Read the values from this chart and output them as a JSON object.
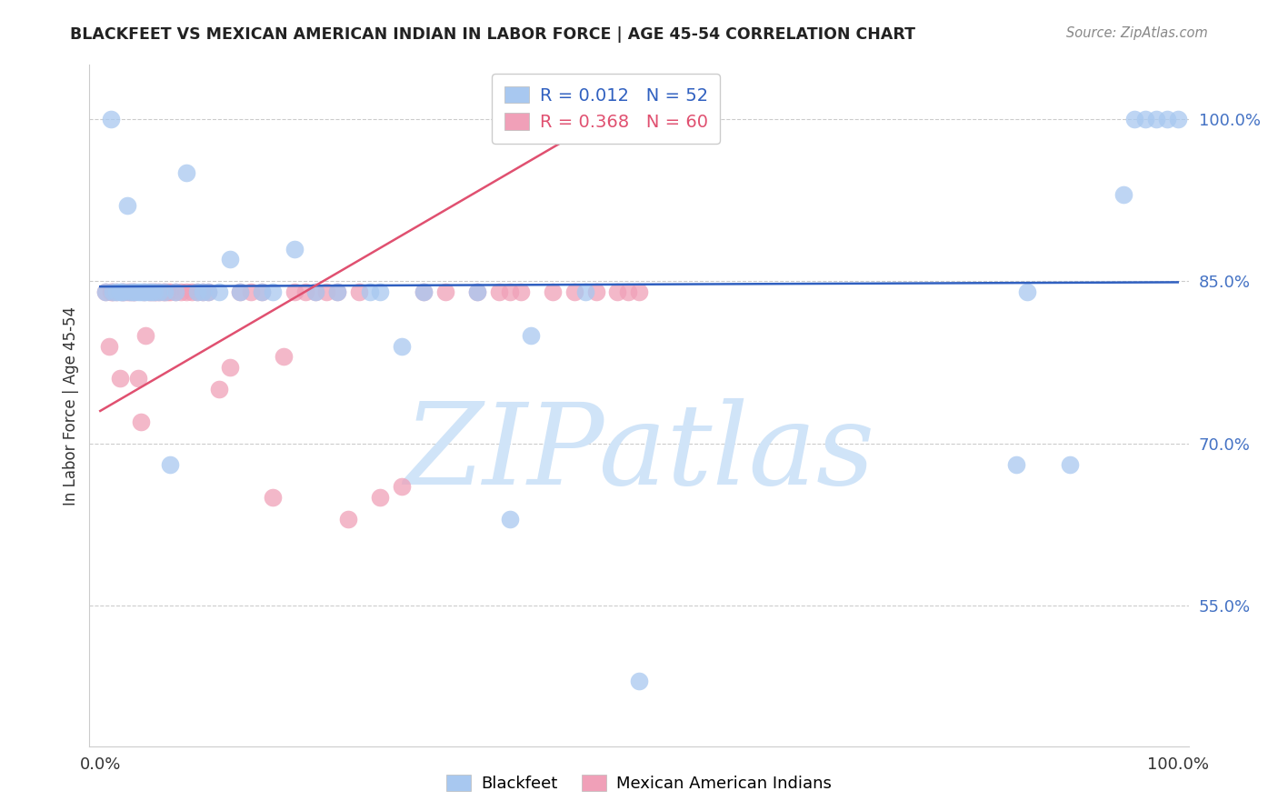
{
  "title": "BLACKFEET VS MEXICAN AMERICAN INDIAN IN LABOR FORCE | AGE 45-54 CORRELATION CHART",
  "source": "Source: ZipAtlas.com",
  "ylabel": "In Labor Force | Age 45-54",
  "r_blue": 0.012,
  "n_blue": 52,
  "r_pink": 0.368,
  "n_pink": 60,
  "blue_color": "#A8C8F0",
  "pink_color": "#F0A0B8",
  "trend_blue_color": "#3060C0",
  "trend_pink_color": "#E05070",
  "watermark_color": "#D0E4F8",
  "background_color": "#FFFFFF",
  "grid_color": "#CCCCCC",
  "ytick_color": "#4472C4",
  "title_color": "#222222",
  "source_color": "#888888",
  "blue_points_x": [
    0.005,
    0.01,
    0.012,
    0.015,
    0.018,
    0.02,
    0.022,
    0.025,
    0.028,
    0.03,
    0.032,
    0.035,
    0.038,
    0.04,
    0.042,
    0.045,
    0.048,
    0.05,
    0.055,
    0.06,
    0.065,
    0.07,
    0.08,
    0.09,
    0.095,
    0.1,
    0.11,
    0.12,
    0.13,
    0.15,
    0.16,
    0.18,
    0.2,
    0.22,
    0.25,
    0.26,
    0.28,
    0.3,
    0.35,
    0.38,
    0.4,
    0.45,
    0.5,
    0.85,
    0.86,
    0.9,
    0.95,
    0.96,
    0.97,
    0.98,
    0.99,
    1.0
  ],
  "blue_points_y": [
    0.84,
    1.0,
    0.84,
    0.84,
    0.84,
    0.84,
    0.84,
    0.92,
    0.84,
    0.84,
    0.84,
    0.84,
    0.84,
    0.84,
    0.84,
    0.84,
    0.84,
    0.84,
    0.84,
    0.84,
    0.68,
    0.84,
    0.95,
    0.84,
    0.84,
    0.84,
    0.84,
    0.87,
    0.84,
    0.84,
    0.84,
    0.88,
    0.84,
    0.84,
    0.84,
    0.84,
    0.79,
    0.84,
    0.84,
    0.63,
    0.8,
    0.84,
    0.48,
    0.68,
    0.84,
    0.68,
    0.93,
    1.0,
    1.0,
    1.0,
    1.0,
    1.0
  ],
  "pink_points_x": [
    0.005,
    0.008,
    0.01,
    0.012,
    0.015,
    0.018,
    0.02,
    0.022,
    0.025,
    0.028,
    0.03,
    0.032,
    0.035,
    0.038,
    0.04,
    0.042,
    0.045,
    0.048,
    0.05,
    0.052,
    0.055,
    0.058,
    0.06,
    0.062,
    0.065,
    0.07,
    0.075,
    0.08,
    0.085,
    0.09,
    0.095,
    0.1,
    0.11,
    0.12,
    0.13,
    0.14,
    0.15,
    0.16,
    0.17,
    0.18,
    0.19,
    0.2,
    0.21,
    0.22,
    0.23,
    0.24,
    0.26,
    0.28,
    0.3,
    0.32,
    0.35,
    0.37,
    0.38,
    0.39,
    0.42,
    0.44,
    0.46,
    0.48,
    0.49,
    0.5
  ],
  "pink_points_y": [
    0.84,
    0.79,
    0.84,
    0.84,
    0.84,
    0.76,
    0.84,
    0.84,
    0.84,
    0.84,
    0.84,
    0.84,
    0.76,
    0.72,
    0.84,
    0.8,
    0.84,
    0.84,
    0.84,
    0.84,
    0.84,
    0.84,
    0.84,
    0.84,
    0.84,
    0.84,
    0.84,
    0.84,
    0.84,
    0.84,
    0.84,
    0.84,
    0.75,
    0.77,
    0.84,
    0.84,
    0.84,
    0.65,
    0.78,
    0.84,
    0.84,
    0.84,
    0.84,
    0.84,
    0.63,
    0.84,
    0.65,
    0.66,
    0.84,
    0.84,
    0.84,
    0.84,
    0.84,
    0.84,
    0.84,
    0.84,
    0.84,
    0.84,
    0.84,
    0.84
  ],
  "xlim": [
    -0.01,
    1.01
  ],
  "ylim": [
    0.42,
    1.05
  ],
  "yticks": [
    0.55,
    0.7,
    0.85,
    1.0
  ],
  "ytick_labels": [
    "55.0%",
    "70.0%",
    "85.0%",
    "100.0%"
  ],
  "xticks": [
    0.0,
    1.0
  ],
  "xtick_labels": [
    "0.0%",
    "100.0%"
  ]
}
